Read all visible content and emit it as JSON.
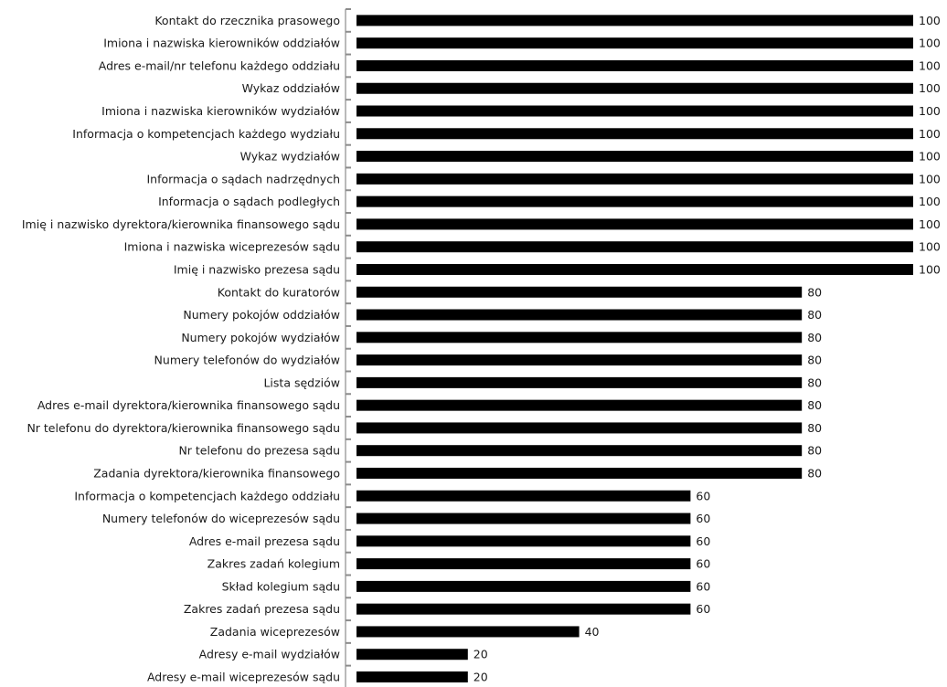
{
  "chart_data": {
    "type": "bar",
    "orientation": "horizontal",
    "title": "",
    "xlabel": "",
    "ylabel": "",
    "xlim": [
      0,
      100
    ],
    "grid": false,
    "legend": "none",
    "bar_color": "#000000",
    "axis_color": "#8c8c8c",
    "categories": [
      "Kontakt do rzecznika prasowego",
      "Imiona i nazwiska kierowników oddziałów",
      "Adres e-mail/nr telefonu każdego oddziału",
      "Wykaz oddziałów",
      "Imiona i nazwiska kierowników wydziałów",
      "Informacja o kompetencjach każdego wydziału",
      "Wykaz wydziałów",
      "Informacja o sądach nadrzędnych",
      "Informacja o sądach podległych",
      "Imię i nazwisko dyrektora/kierownika finansowego sądu",
      "Imiona i nazwiska wiceprezesów sądu",
      "Imię i nazwisko prezesa sądu",
      "Kontakt do kuratorów",
      "Numery pokojów oddziałów",
      "Numery pokojów wydziałów",
      "Numery telefonów do wydziałów",
      "Lista sędziów",
      "Adres e-mail dyrektora/kierownika finansowego sądu",
      "Nr telefonu do dyrektora/kierownika finansowego sądu",
      "Nr telefonu do prezesa sądu",
      "Zadania dyrektora/kierownika finansowego",
      "Informacja o kompetencjach każdego oddziału",
      "Numery telefonów do wiceprezesów sądu",
      "Adres e-mail prezesa sądu",
      "Zakres zadań kolegium",
      "Skład kolegium sądu",
      "Zakres zadań prezesa sądu",
      "Zadania wiceprezesów",
      "Adresy e-mail wydziałów",
      "Adresy e-mail wiceprezesów sądu"
    ],
    "values": [
      100,
      100,
      100,
      100,
      100,
      100,
      100,
      100,
      100,
      100,
      100,
      100,
      80,
      80,
      80,
      80,
      80,
      80,
      80,
      80,
      80,
      60,
      60,
      60,
      60,
      60,
      60,
      40,
      20,
      20
    ]
  }
}
